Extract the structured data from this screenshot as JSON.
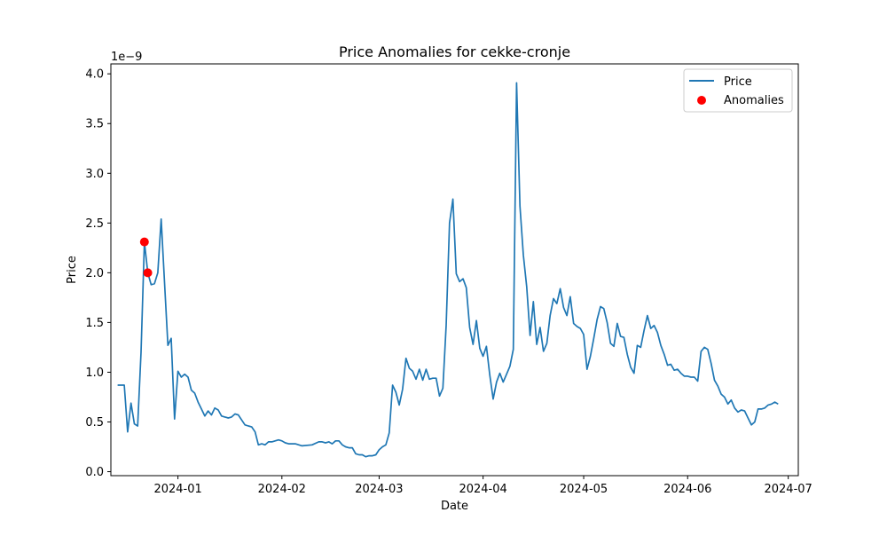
{
  "chart_data": {
    "type": "line",
    "title": "Price Anomalies for cekke-cronje",
    "xlabel": "Date",
    "ylabel": "Price",
    "y_offset_label": "1e−9",
    "ylim": [
      -0.04,
      4.1
    ],
    "xlim": [
      "2023-12-12",
      "2024-07-04"
    ],
    "x_ticks": [
      "2024-01-01",
      "2024-02-01",
      "2024-03-01",
      "2024-04-01",
      "2024-05-01",
      "2024-06-01",
      "2024-07-01"
    ],
    "x_tick_labels": [
      "2024-01",
      "2024-02",
      "2024-03",
      "2024-04",
      "2024-05",
      "2024-06",
      "2024-07"
    ],
    "y_ticks": [
      0.0,
      0.5,
      1.0,
      1.5,
      2.0,
      2.5,
      3.0,
      3.5,
      4.0
    ],
    "y_tick_labels": [
      "0.0",
      "0.5",
      "1.0",
      "1.5",
      "2.0",
      "2.5",
      "3.0",
      "3.5",
      "4.0"
    ],
    "grid": false,
    "legend": "top-right",
    "series": [
      {
        "name": "Price",
        "kind": "line",
        "color": "#1f77b4",
        "points": [
          [
            "2023-12-14",
            0.87
          ],
          [
            "2023-12-15",
            0.87
          ],
          [
            "2023-12-16",
            0.87
          ],
          [
            "2023-12-17",
            0.4
          ],
          [
            "2023-12-18",
            0.69
          ],
          [
            "2023-12-19",
            0.48
          ],
          [
            "2023-12-20",
            0.46
          ],
          [
            "2023-12-21",
            1.2
          ],
          [
            "2023-12-22",
            2.31
          ],
          [
            "2023-12-23",
            2.0
          ],
          [
            "2023-12-24",
            1.88
          ],
          [
            "2023-12-25",
            1.89
          ],
          [
            "2023-12-26",
            2.0
          ],
          [
            "2023-12-27",
            2.54
          ],
          [
            "2023-12-28",
            1.9
          ],
          [
            "2023-12-29",
            1.27
          ],
          [
            "2023-12-30",
            1.34
          ],
          [
            "2023-12-31",
            0.53
          ],
          [
            "2024-01-01",
            1.01
          ],
          [
            "2024-01-02",
            0.95
          ],
          [
            "2024-01-03",
            0.98
          ],
          [
            "2024-01-04",
            0.95
          ],
          [
            "2024-01-05",
            0.82
          ],
          [
            "2024-01-06",
            0.79
          ],
          [
            "2024-01-07",
            0.7
          ],
          [
            "2024-01-08",
            0.63
          ],
          [
            "2024-01-09",
            0.56
          ],
          [
            "2024-01-10",
            0.61
          ],
          [
            "2024-01-11",
            0.57
          ],
          [
            "2024-01-12",
            0.64
          ],
          [
            "2024-01-13",
            0.62
          ],
          [
            "2024-01-14",
            0.56
          ],
          [
            "2024-01-15",
            0.55
          ],
          [
            "2024-01-16",
            0.54
          ],
          [
            "2024-01-17",
            0.55
          ],
          [
            "2024-01-18",
            0.58
          ],
          [
            "2024-01-19",
            0.57
          ],
          [
            "2024-01-20",
            0.52
          ],
          [
            "2024-01-21",
            0.47
          ],
          [
            "2024-01-22",
            0.46
          ],
          [
            "2024-01-23",
            0.45
          ],
          [
            "2024-01-24",
            0.4
          ],
          [
            "2024-01-25",
            0.27
          ],
          [
            "2024-01-26",
            0.28
          ],
          [
            "2024-01-27",
            0.27
          ],
          [
            "2024-01-28",
            0.3
          ],
          [
            "2024-01-29",
            0.3
          ],
          [
            "2024-01-30",
            0.31
          ],
          [
            "2024-01-31",
            0.32
          ],
          [
            "2024-02-01",
            0.31
          ],
          [
            "2024-02-02",
            0.29
          ],
          [
            "2024-02-03",
            0.28
          ],
          [
            "2024-02-05",
            0.28
          ],
          [
            "2024-02-07",
            0.26
          ],
          [
            "2024-02-10",
            0.27
          ],
          [
            "2024-02-12",
            0.3
          ],
          [
            "2024-02-13",
            0.3
          ],
          [
            "2024-02-14",
            0.29
          ],
          [
            "2024-02-15",
            0.3
          ],
          [
            "2024-02-16",
            0.28
          ],
          [
            "2024-02-17",
            0.31
          ],
          [
            "2024-02-18",
            0.31
          ],
          [
            "2024-02-19",
            0.27
          ],
          [
            "2024-02-20",
            0.25
          ],
          [
            "2024-02-21",
            0.24
          ],
          [
            "2024-02-22",
            0.24
          ],
          [
            "2024-02-23",
            0.18
          ],
          [
            "2024-02-24",
            0.17
          ],
          [
            "2024-02-25",
            0.17
          ],
          [
            "2024-02-26",
            0.15
          ],
          [
            "2024-02-27",
            0.16
          ],
          [
            "2024-02-28",
            0.16
          ],
          [
            "2024-02-29",
            0.17
          ],
          [
            "2024-03-01",
            0.22
          ],
          [
            "2024-03-02",
            0.25
          ],
          [
            "2024-03-03",
            0.27
          ],
          [
            "2024-03-04",
            0.39
          ],
          [
            "2024-03-05",
            0.87
          ],
          [
            "2024-03-06",
            0.8
          ],
          [
            "2024-03-07",
            0.67
          ],
          [
            "2024-03-08",
            0.83
          ],
          [
            "2024-03-09",
            1.14
          ],
          [
            "2024-03-10",
            1.04
          ],
          [
            "2024-03-11",
            1.01
          ],
          [
            "2024-03-12",
            0.93
          ],
          [
            "2024-03-13",
            1.03
          ],
          [
            "2024-03-14",
            0.92
          ],
          [
            "2024-03-15",
            1.03
          ],
          [
            "2024-03-16",
            0.93
          ],
          [
            "2024-03-17",
            0.94
          ],
          [
            "2024-03-18",
            0.94
          ],
          [
            "2024-03-19",
            0.76
          ],
          [
            "2024-03-20",
            0.84
          ],
          [
            "2024-03-21",
            1.47
          ],
          [
            "2024-03-22",
            2.5
          ],
          [
            "2024-03-23",
            2.74
          ],
          [
            "2024-03-24",
            1.99
          ],
          [
            "2024-03-25",
            1.91
          ],
          [
            "2024-03-26",
            1.94
          ],
          [
            "2024-03-27",
            1.85
          ],
          [
            "2024-03-28",
            1.45
          ],
          [
            "2024-03-29",
            1.28
          ],
          [
            "2024-03-30",
            1.52
          ],
          [
            "2024-03-31",
            1.24
          ],
          [
            "2024-04-01",
            1.16
          ],
          [
            "2024-04-02",
            1.26
          ],
          [
            "2024-04-03",
            0.97
          ],
          [
            "2024-04-04",
            0.73
          ],
          [
            "2024-04-05",
            0.9
          ],
          [
            "2024-04-06",
            0.99
          ],
          [
            "2024-04-07",
            0.9
          ],
          [
            "2024-04-08",
            0.98
          ],
          [
            "2024-04-09",
            1.06
          ],
          [
            "2024-04-10",
            1.23
          ],
          [
            "2024-04-11",
            3.91
          ],
          [
            "2024-04-12",
            2.67
          ],
          [
            "2024-04-13",
            2.18
          ],
          [
            "2024-04-14",
            1.86
          ],
          [
            "2024-04-15",
            1.37
          ],
          [
            "2024-04-16",
            1.71
          ],
          [
            "2024-04-17",
            1.28
          ],
          [
            "2024-04-18",
            1.45
          ],
          [
            "2024-04-19",
            1.21
          ],
          [
            "2024-04-20",
            1.29
          ],
          [
            "2024-04-21",
            1.57
          ],
          [
            "2024-04-22",
            1.74
          ],
          [
            "2024-04-23",
            1.69
          ],
          [
            "2024-04-24",
            1.84
          ],
          [
            "2024-04-25",
            1.65
          ],
          [
            "2024-04-26",
            1.57
          ],
          [
            "2024-04-27",
            1.76
          ],
          [
            "2024-04-28",
            1.49
          ],
          [
            "2024-04-29",
            1.46
          ],
          [
            "2024-04-30",
            1.44
          ],
          [
            "2024-05-01",
            1.38
          ],
          [
            "2024-05-02",
            1.03
          ],
          [
            "2024-05-03",
            1.16
          ],
          [
            "2024-05-04",
            1.34
          ],
          [
            "2024-05-05",
            1.53
          ],
          [
            "2024-05-06",
            1.66
          ],
          [
            "2024-05-07",
            1.64
          ],
          [
            "2024-05-08",
            1.5
          ],
          [
            "2024-05-09",
            1.29
          ],
          [
            "2024-05-10",
            1.26
          ],
          [
            "2024-05-11",
            1.49
          ],
          [
            "2024-05-12",
            1.36
          ],
          [
            "2024-05-13",
            1.35
          ],
          [
            "2024-05-14",
            1.18
          ],
          [
            "2024-05-15",
            1.05
          ],
          [
            "2024-05-16",
            0.99
          ],
          [
            "2024-05-17",
            1.27
          ],
          [
            "2024-05-18",
            1.25
          ],
          [
            "2024-05-19",
            1.42
          ],
          [
            "2024-05-20",
            1.57
          ],
          [
            "2024-05-21",
            1.44
          ],
          [
            "2024-05-22",
            1.47
          ],
          [
            "2024-05-23",
            1.4
          ],
          [
            "2024-05-24",
            1.27
          ],
          [
            "2024-05-25",
            1.18
          ],
          [
            "2024-05-26",
            1.07
          ],
          [
            "2024-05-27",
            1.08
          ],
          [
            "2024-05-28",
            1.02
          ],
          [
            "2024-05-29",
            1.03
          ],
          [
            "2024-05-30",
            0.99
          ],
          [
            "2024-05-31",
            0.96
          ],
          [
            "2024-06-01",
            0.96
          ],
          [
            "2024-06-02",
            0.95
          ],
          [
            "2024-06-03",
            0.95
          ],
          [
            "2024-06-04",
            0.91
          ],
          [
            "2024-06-05",
            1.21
          ],
          [
            "2024-06-06",
            1.25
          ],
          [
            "2024-06-07",
            1.23
          ],
          [
            "2024-06-08",
            1.09
          ],
          [
            "2024-06-09",
            0.92
          ],
          [
            "2024-06-10",
            0.86
          ],
          [
            "2024-06-11",
            0.78
          ],
          [
            "2024-06-12",
            0.75
          ],
          [
            "2024-06-13",
            0.68
          ],
          [
            "2024-06-14",
            0.72
          ],
          [
            "2024-06-15",
            0.64
          ],
          [
            "2024-06-16",
            0.6
          ],
          [
            "2024-06-17",
            0.62
          ],
          [
            "2024-06-18",
            0.61
          ],
          [
            "2024-06-19",
            0.54
          ],
          [
            "2024-06-20",
            0.47
          ],
          [
            "2024-06-21",
            0.5
          ],
          [
            "2024-06-22",
            0.63
          ],
          [
            "2024-06-23",
            0.63
          ],
          [
            "2024-06-24",
            0.64
          ],
          [
            "2024-06-25",
            0.67
          ],
          [
            "2024-06-26",
            0.68
          ],
          [
            "2024-06-27",
            0.7
          ],
          [
            "2024-06-28",
            0.68
          ]
        ]
      },
      {
        "name": "Anomalies",
        "kind": "scatter",
        "color": "#ff0000",
        "points": [
          [
            "2023-12-22",
            2.31
          ],
          [
            "2023-12-23",
            2.0
          ]
        ]
      }
    ]
  }
}
